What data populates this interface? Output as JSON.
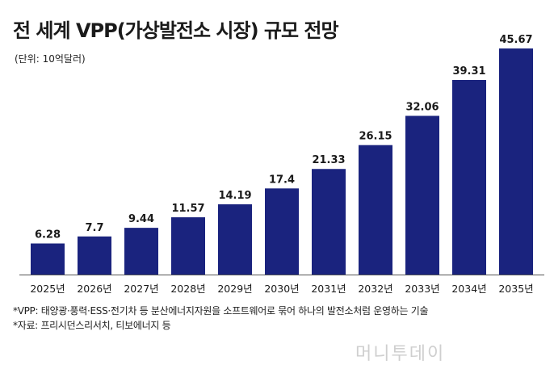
{
  "title": "전 세계 VPP(가상발전소 시장) 규모 전망",
  "unit": "(단위: 10억달러)",
  "notes": [
    "*VPP: 태양광·풍력·ESS·전기차 등 분산에너지자원을 소프트웨어로 묶어 하나의 발전소처럼 운영하는 기술",
    "*자료: 프리시던스리서치, 티보에너지 등"
  ],
  "watermark": "머니투데이",
  "colors": {
    "bar": "#1a237e",
    "axis": "#555555"
  },
  "chart_data": {
    "type": "bar",
    "categories": [
      "2025년",
      "2026년",
      "2027년",
      "2028년",
      "2029년",
      "2030년",
      "2031년",
      "2032년",
      "2033년",
      "2034년",
      "2035년"
    ],
    "values": [
      6.28,
      7.7,
      9.44,
      11.57,
      14.19,
      17.4,
      21.33,
      26.15,
      32.06,
      39.31,
      45.67
    ],
    "value_labels": [
      "6.28",
      "7.7",
      "9.44",
      "11.57",
      "14.19",
      "17.4",
      "21.33",
      "26.15",
      "32.06",
      "39.31",
      "45.67"
    ],
    "title": "전 세계 VPP(가상발전소 시장) 규모 전망",
    "ylabel": "(단위: 10억달러)",
    "ylim": [
      0,
      46
    ],
    "grid": false
  }
}
